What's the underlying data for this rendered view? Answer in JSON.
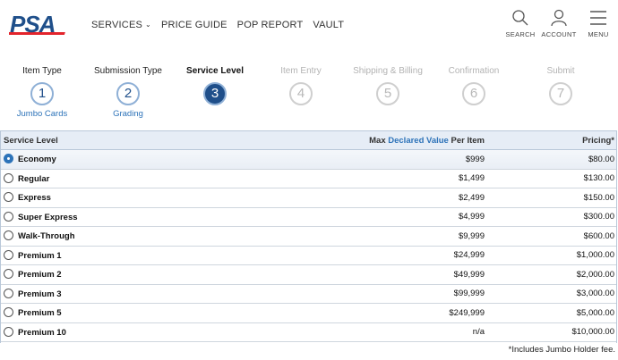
{
  "header": {
    "logo_text": "PSA",
    "nav": [
      {
        "label": "SERVICES",
        "has_caret": true
      },
      {
        "label": "PRICE GUIDE"
      },
      {
        "label": "POP REPORT"
      },
      {
        "label": "VAULT"
      }
    ],
    "search_label": "SEARCH",
    "account_label": "ACCOUNT",
    "menu_label": "MENU"
  },
  "steps": [
    {
      "title": "Item Type",
      "number": "1",
      "sub": "Jumbo Cards",
      "state": "done"
    },
    {
      "title": "Submission Type",
      "number": "2",
      "sub": "Grading",
      "state": "done"
    },
    {
      "title": "Service Level",
      "number": "3",
      "sub": "",
      "state": "active"
    },
    {
      "title": "Item Entry",
      "number": "4",
      "sub": "",
      "state": "disabled"
    },
    {
      "title": "Shipping & Billing",
      "number": "5",
      "sub": "",
      "state": "disabled"
    },
    {
      "title": "Confirmation",
      "number": "6",
      "sub": "",
      "state": "disabled"
    },
    {
      "title": "Submit",
      "number": "7",
      "sub": "",
      "state": "disabled"
    }
  ],
  "table": {
    "headers": {
      "service_level": "Service Level",
      "max_prefix": "Max ",
      "declared_value": "Declared Value",
      "per_item": " Per Item",
      "pricing": "Pricing*"
    },
    "rows": [
      {
        "name": "Economy",
        "max_value": "$999",
        "price": "$80.00",
        "selected": true
      },
      {
        "name": "Regular",
        "max_value": "$1,499",
        "price": "$130.00",
        "selected": false
      },
      {
        "name": "Express",
        "max_value": "$2,499",
        "price": "$150.00",
        "selected": false
      },
      {
        "name": "Super Express",
        "max_value": "$4,999",
        "price": "$300.00",
        "selected": false
      },
      {
        "name": "Walk-Through",
        "max_value": "$9,999",
        "price": "$600.00",
        "selected": false
      },
      {
        "name": "Premium 1",
        "max_value": "$24,999",
        "price": "$1,000.00",
        "selected": false
      },
      {
        "name": "Premium 2",
        "max_value": "$49,999",
        "price": "$2,000.00",
        "selected": false
      },
      {
        "name": "Premium 3",
        "max_value": "$99,999",
        "price": "$3,000.00",
        "selected": false
      },
      {
        "name": "Premium 5",
        "max_value": "$249,999",
        "price": "$5,000.00",
        "selected": false
      },
      {
        "name": "Premium 10",
        "max_value": "n/a",
        "price": "$10,000.00",
        "selected": false
      }
    ]
  },
  "footnote": "*Includes Jumbo Holder fee.",
  "colors": {
    "brand_blue": "#1f4f8a",
    "brand_red": "#e3242b",
    "link_blue": "#2d73b9",
    "disabled_gray": "#b8b8b8"
  }
}
